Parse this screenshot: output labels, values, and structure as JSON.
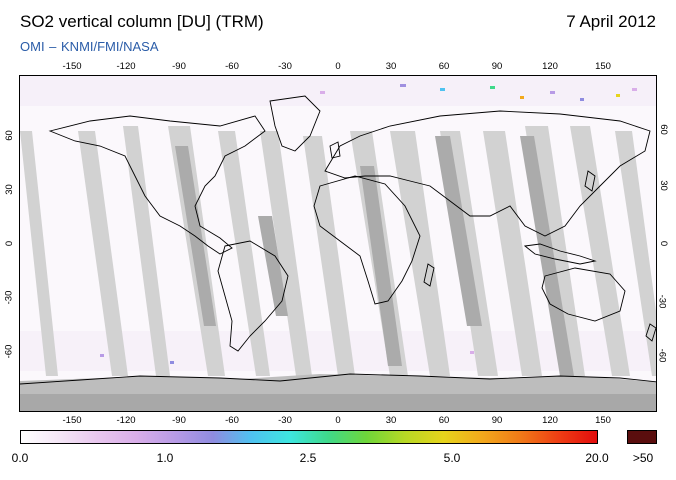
{
  "title": "SO2 vertical column [DU] (TRM)",
  "date": "7 April 2012",
  "credit": "OMI  –  KNMI/FMI/NASA",
  "axes": {
    "lon_ticks": [
      "-150",
      "-120",
      "-90",
      "-60",
      "-30",
      "0",
      "30",
      "60",
      "90",
      "120",
      "150"
    ],
    "lat_ticks": [
      "60",
      "30",
      "0",
      "-30",
      "-60"
    ]
  },
  "colorbar": {
    "labels": [
      "0.0",
      "1.0",
      "2.5",
      "5.0",
      "20.0"
    ],
    "overflow_label": ">50",
    "overflow_color": "#5a0e0e",
    "colors": [
      "#ffffff",
      "#f4e6f6",
      "#e8c6ee",
      "#d9aee9",
      "#b89be6",
      "#8f8ce0",
      "#4fc2f0",
      "#3ee6e0",
      "#3fd98a",
      "#6ed63a",
      "#b8d825",
      "#e6d41c",
      "#f2a91c",
      "#f07a18",
      "#ee3e14",
      "#e30d0d"
    ]
  },
  "map": {
    "land_outline_color": "#000000",
    "orbit_gap_color_light": "#d2d2d2",
    "orbit_gap_color_dark": "#ababab",
    "antarctica_color": "#a8a8a8"
  }
}
